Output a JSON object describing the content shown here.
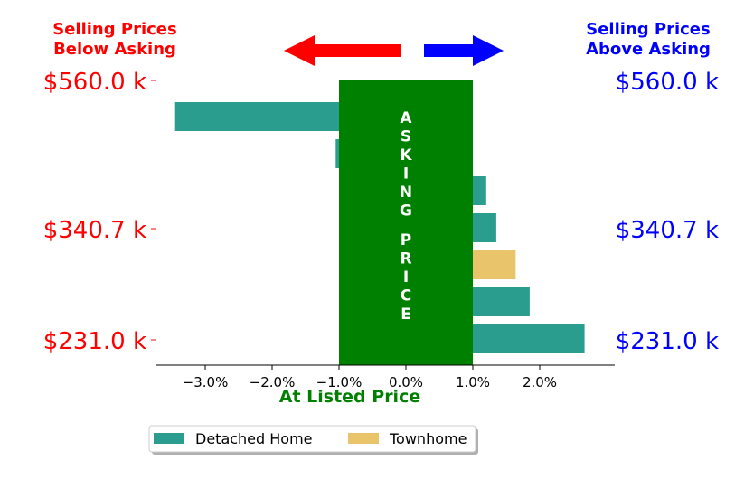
{
  "chart_data": {
    "type": "bar",
    "orientation": "horizontal",
    "title": "",
    "xlabel": "At Listed Price",
    "ylabel": "",
    "xlim": [
      -3.9,
      2.9
    ],
    "x_ticks": [
      "−3.0%",
      "−2.0%",
      "−1.0%",
      "0.0%",
      "1.0%",
      "2.0%"
    ],
    "price_levels": [
      "$560.0 k",
      "$340.7 k",
      "$231.0 k"
    ],
    "series": [
      {
        "name": "Detached Home",
        "color": "#2a9d8f"
      },
      {
        "name": "Townhome",
        "color": "#e9c46a"
      }
    ],
    "bars": [
      {
        "series": "Detached Home",
        "value": -3.45
      },
      {
        "series": "Detached Home",
        "value": -1.05
      },
      {
        "series": "Detached Home",
        "value": 1.2
      },
      {
        "series": "Detached Home",
        "value": 1.35
      },
      {
        "series": "Townhome",
        "value": 1.64
      },
      {
        "series": "Detached Home",
        "value": 1.85
      },
      {
        "series": "Detached Home",
        "value": 2.67
      }
    ],
    "asking_band": {
      "label_top": "ASKING",
      "label_bottom": "PRICE",
      "from": -1.0,
      "to": 1.0,
      "color": "#008000"
    },
    "legend": {
      "placement": "bottom-center",
      "entries": [
        "Detached Home",
        "Townhome"
      ]
    }
  },
  "header": {
    "left_line1": "Selling Prices",
    "left_line2": "Below Asking",
    "right_line1": "Selling Prices",
    "right_line2": "Above Asking",
    "left_color": "#ff0000",
    "right_color": "#0000ff"
  }
}
